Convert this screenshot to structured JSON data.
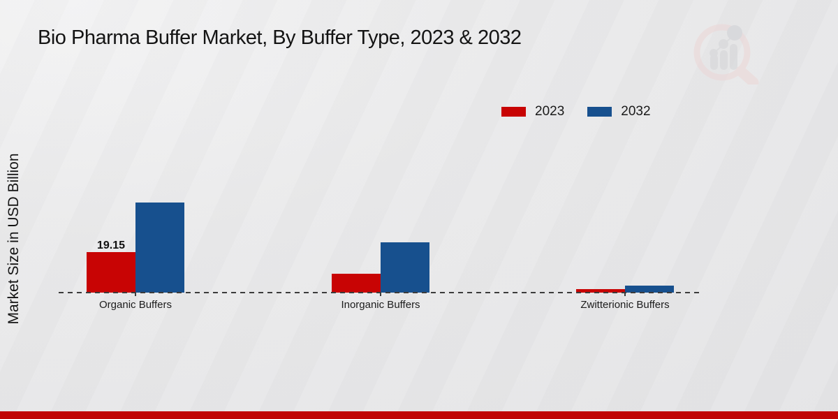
{
  "header": {
    "title": "Bio Pharma Buffer Market, By Buffer Type, 2023 & 2032"
  },
  "legend": [
    {
      "label": "2023",
      "color": "#c80404"
    },
    {
      "label": "2032",
      "color": "#17508e"
    }
  ],
  "chart_data": {
    "type": "bar",
    "title": "Bio Pharma Buffer Market, By Buffer Type, 2023 & 2032",
    "xlabel": "",
    "ylabel": "Market Size in USD Billion",
    "categories": [
      "Organic Buffers",
      "Inorganic Buffers",
      "Zwitterionic Buffers"
    ],
    "series": [
      {
        "name": "2023",
        "color": "#c80404",
        "values": [
          19.15,
          9.0,
          1.5
        ]
      },
      {
        "name": "2032",
        "color": "#17508e",
        "values": [
          42.6,
          23.9,
          3.3
        ]
      }
    ],
    "data_labels": [
      {
        "text": "19.15",
        "series": "2023",
        "category": "Organic Buffers"
      }
    ],
    "ylim": [
      0,
      45
    ],
    "grid": false,
    "baseline_style": "dashed",
    "legend_position": "upper-right"
  },
  "icons": {
    "watermark": "magnifier-bar-chart-icon"
  },
  "colors": {
    "footer_accent": "#c00505",
    "background": "#e9e9ea",
    "text": "#141414"
  }
}
